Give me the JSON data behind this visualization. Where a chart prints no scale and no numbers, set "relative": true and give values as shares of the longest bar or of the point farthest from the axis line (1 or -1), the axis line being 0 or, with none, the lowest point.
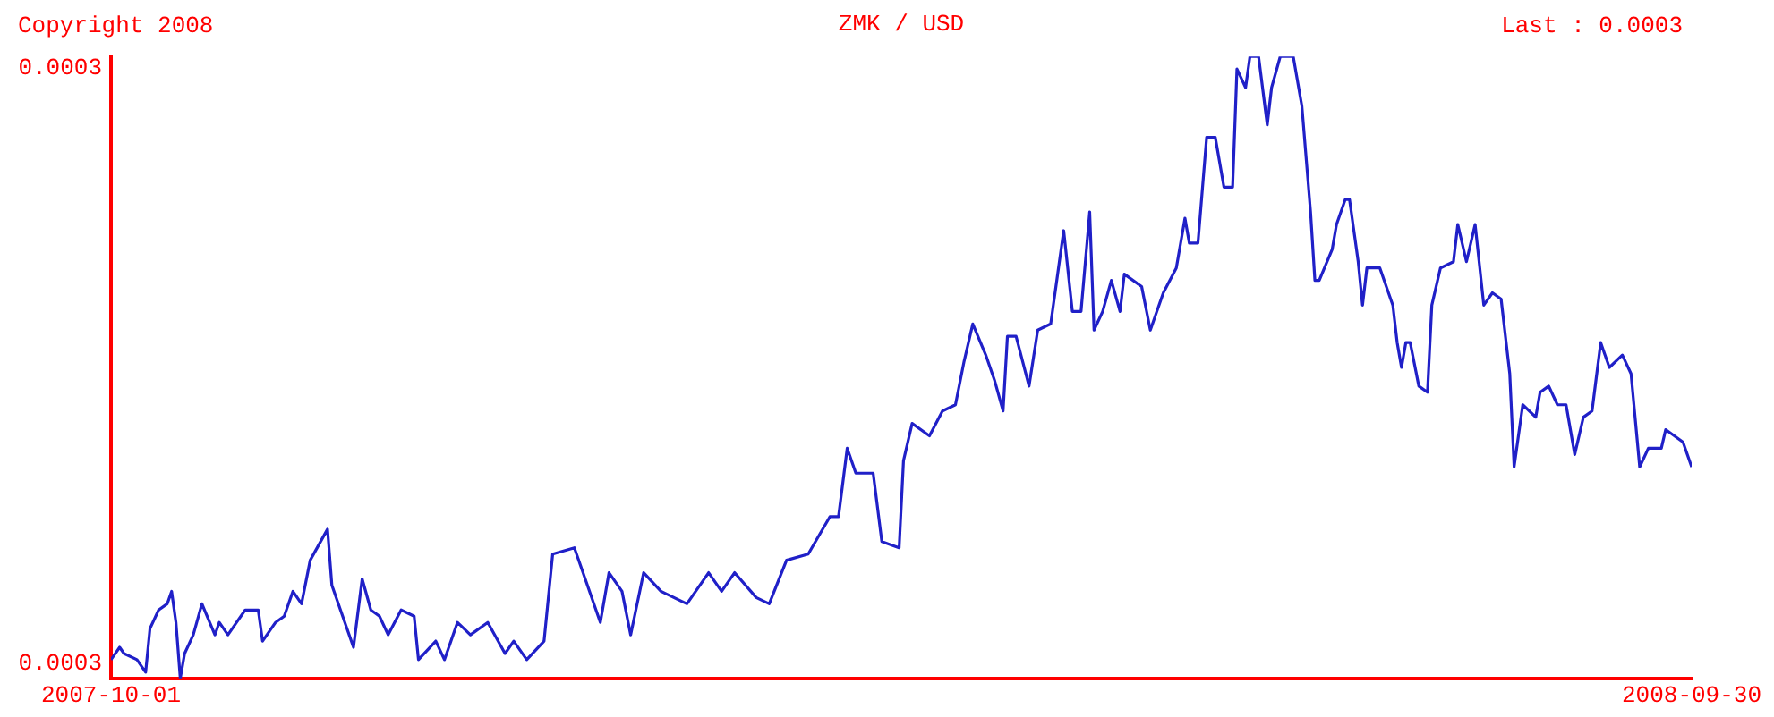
{
  "chart_data": {
    "type": "line",
    "title": "ZMK / USD",
    "relative": true,
    "color": "#2020c8",
    "grid": false,
    "legend": false,
    "marker": "none",
    "line_style": "solid",
    "annotations": [
      "Copyright 2008",
      "Last : 0.0003",
      "0.0003",
      "0.0003"
    ],
    "xlim": [
      "2007-10-01",
      "2008-09-30"
    ],
    "xticks": [
      "2007-10-01",
      "2008-09-30"
    ],
    "x": [
      "2007-10-01",
      "2007-10-03",
      "2007-10-04",
      "2007-10-07",
      "2007-10-09",
      "2007-10-10",
      "2007-10-12",
      "2007-10-14",
      "2007-10-15",
      "2007-10-16",
      "2007-10-17",
      "2007-10-18",
      "2007-10-20",
      "2007-10-22",
      "2007-10-25",
      "2007-10-26",
      "2007-10-28",
      "2007-10-30",
      "2007-11-01",
      "2007-11-04",
      "2007-11-05",
      "2007-11-08",
      "2007-11-10",
      "2007-11-12",
      "2007-11-14",
      "2007-11-16",
      "2007-11-20",
      "2007-11-21",
      "2007-11-24",
      "2007-11-26",
      "2007-11-28",
      "2007-11-30",
      "2007-12-02",
      "2007-12-04",
      "2007-12-07",
      "2007-12-10",
      "2007-12-11",
      "2007-12-15",
      "2007-12-17",
      "2007-12-20",
      "2007-12-23",
      "2007-12-27",
      "2007-12-31",
      "2008-01-02",
      "2008-01-05",
      "2008-01-09",
      "2008-01-11",
      "2008-01-16",
      "2008-01-18",
      "2008-01-22",
      "2008-01-24",
      "2008-01-27",
      "2008-01-29",
      "2008-02-01",
      "2008-02-05",
      "2008-02-11",
      "2008-02-16",
      "2008-02-19",
      "2008-02-22",
      "2008-02-27",
      "2008-03-01",
      "2008-03-05",
      "2008-03-10",
      "2008-03-15",
      "2008-03-17",
      "2008-03-19",
      "2008-03-21",
      "2008-03-25",
      "2008-03-27",
      "2008-03-31",
      "2008-04-01",
      "2008-04-03",
      "2008-04-07",
      "2008-04-10",
      "2008-04-13",
      "2008-04-15",
      "2008-04-17",
      "2008-04-20",
      "2008-04-22",
      "2008-04-24",
      "2008-04-25",
      "2008-04-27",
      "2008-04-30",
      "2008-05-02",
      "2008-05-05",
      "2008-05-08",
      "2008-05-10",
      "2008-05-12",
      "2008-05-14",
      "2008-05-15",
      "2008-05-17",
      "2008-05-19",
      "2008-05-21",
      "2008-05-22",
      "2008-05-26",
      "2008-05-28",
      "2008-05-31",
      "2008-06-03",
      "2008-06-05",
      "2008-06-06",
      "2008-06-08",
      "2008-06-10",
      "2008-06-12",
      "2008-06-14",
      "2008-06-16",
      "2008-06-17",
      "2008-06-19",
      "2008-06-20",
      "2008-06-22",
      "2008-06-24",
      "2008-06-25",
      "2008-06-27",
      "2008-06-30",
      "2008-07-02",
      "2008-07-04",
      "2008-07-05",
      "2008-07-06",
      "2008-07-09",
      "2008-07-10",
      "2008-07-12",
      "2008-07-13",
      "2008-07-15",
      "2008-07-16",
      "2008-07-17",
      "2008-07-20",
      "2008-07-23",
      "2008-07-24",
      "2008-07-25",
      "2008-07-26",
      "2008-07-27",
      "2008-07-29",
      "2008-07-31",
      "2008-08-01",
      "2008-08-03",
      "2008-08-06",
      "2008-08-07",
      "2008-08-09",
      "2008-08-11",
      "2008-08-13",
      "2008-08-15",
      "2008-08-17",
      "2008-08-19",
      "2008-08-20",
      "2008-08-22",
      "2008-08-25",
      "2008-08-26",
      "2008-08-28",
      "2008-08-30",
      "2008-09-01",
      "2008-09-03",
      "2008-09-05",
      "2008-09-07",
      "2008-09-09",
      "2008-09-11",
      "2008-09-14",
      "2008-09-16",
      "2008-09-18",
      "2008-09-20",
      "2008-09-23",
      "2008-09-24",
      "2008-09-26",
      "2008-09-28",
      "2008-09-30"
    ],
    "values": [
      0.03,
      0.05,
      0.04,
      0.03,
      0.01,
      0.08,
      0.11,
      0.12,
      0.14,
      0.09,
      0,
      0.04,
      0.07,
      0.12,
      0.07,
      0.09,
      0.07,
      0.09,
      0.11,
      0.11,
      0.06,
      0.09,
      0.1,
      0.14,
      0.12,
      0.19,
      0.24,
      0.15,
      0.09,
      0.05,
      0.16,
      0.11,
      0.1,
      0.07,
      0.11,
      0.1,
      0.03,
      0.06,
      0.03,
      0.09,
      0.07,
      0.09,
      0.04,
      0.06,
      0.03,
      0.06,
      0.2,
      0.21,
      0.17,
      0.09,
      0.17,
      0.14,
      0.07,
      0.17,
      0.14,
      0.12,
      0.17,
      0.14,
      0.17,
      0.13,
      0.12,
      0.19,
      0.2,
      0.26,
      0.26,
      0.37,
      0.33,
      0.33,
      0.22,
      0.21,
      0.35,
      0.41,
      0.39,
      0.43,
      0.44,
      0.51,
      0.57,
      0.52,
      0.48,
      0.43,
      0.55,
      0.55,
      0.47,
      0.56,
      0.57,
      0.72,
      0.59,
      0.59,
      0.75,
      0.56,
      0.59,
      0.64,
      0.59,
      0.65,
      0.63,
      0.56,
      0.62,
      0.66,
      0.74,
      0.7,
      0.7,
      0.87,
      0.87,
      0.79,
      0.79,
      0.98,
      0.95,
      1,
      1,
      0.89,
      0.95,
      1,
      1,
      0.92,
      0.75,
      0.64,
      0.64,
      0.69,
      0.73,
      0.77,
      0.77,
      0.67,
      0.6,
      0.66,
      0.66,
      0.6,
      0.54,
      0.5,
      0.54,
      0.54,
      0.47,
      0.46,
      0.6,
      0.66,
      0.67,
      0.73,
      0.67,
      0.73,
      0.6,
      0.62,
      0.61,
      0.49,
      0.34,
      0.44,
      0.42,
      0.46,
      0.47,
      0.44,
      0.44,
      0.36,
      0.42,
      0.43,
      0.54,
      0.5,
      0.52,
      0.49,
      0.34,
      0.37,
      0.37,
      0.4,
      0.39,
      0.38,
      0.34
    ]
  }
}
